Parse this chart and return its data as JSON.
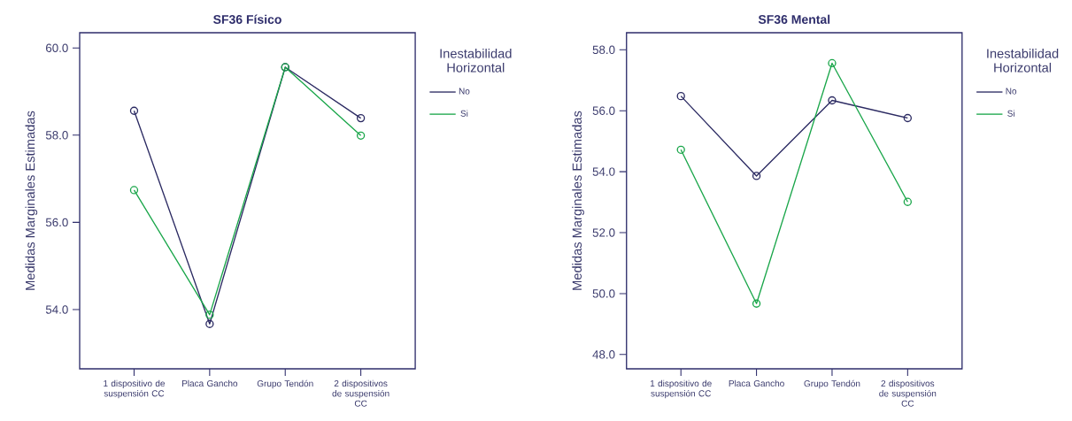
{
  "chart_data": [
    {
      "type": "line",
      "title": "SF36 Físico",
      "ylabel": "Medidas Marginales Estimadas",
      "legend_title": "Inestabilidad Horizontal",
      "categories": [
        "1 dispositivo de suspensión CC",
        "Placa Gancho",
        "Grupo Tendón",
        "2 dispositivos de suspensión CC"
      ],
      "series": [
        {
          "name": "No",
          "color": "#2b2a62",
          "values": [
            58.56,
            53.67,
            59.56,
            58.39
          ]
        },
        {
          "name": "Si",
          "color": "#1aa64a",
          "values": [
            56.74,
            53.88,
            59.56,
            57.99
          ]
        }
      ],
      "ylim": [
        52.64,
        60.35
      ],
      "yticks": [
        {
          "value": 54,
          "label": "54.0"
        },
        {
          "value": 56,
          "label": "56.0"
        },
        {
          "value": 58,
          "label": "58.0"
        },
        {
          "value": 60,
          "label": "60.0"
        }
      ],
      "legend": "right",
      "marker": "circle",
      "line_style": "solid"
    },
    {
      "type": "line",
      "title": "SF36 Mental",
      "ylabel": "Medidas Marginales Estimadas",
      "legend_title": "Inestabilidad Horizontal",
      "categories": [
        "1 dispositivo de suspensión CC",
        "Placa Gancho",
        "Grupo Tendón",
        "2 dispositivos de suspensión CC"
      ],
      "series": [
        {
          "name": "No",
          "color": "#2b2a62",
          "values": [
            56.48,
            53.86,
            56.34,
            55.76
          ]
        },
        {
          "name": "Si",
          "color": "#1aa64a",
          "values": [
            54.72,
            49.67,
            57.56,
            53.01
          ]
        }
      ],
      "ylim": [
        47.53,
        58.56
      ],
      "yticks": [
        {
          "value": 48,
          "label": "48.0"
        },
        {
          "value": 50,
          "label": "50.0"
        },
        {
          "value": 52,
          "label": "52.0"
        },
        {
          "value": 54,
          "label": "54.0"
        },
        {
          "value": 56,
          "label": "56.0"
        },
        {
          "value": 58,
          "label": "58.0"
        }
      ],
      "legend": "right",
      "marker": "circle",
      "line_style": "solid"
    }
  ]
}
